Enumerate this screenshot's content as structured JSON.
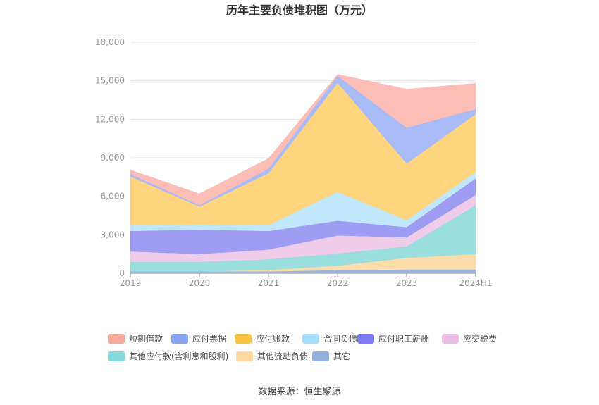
{
  "chart_data": {
    "type": "area",
    "stacked": true,
    "title": "历年主要负债堆积图（万元）",
    "categories": [
      "2019",
      "2020",
      "2021",
      "2022",
      "2023",
      "2024H1"
    ],
    "y_ticks": [
      "0",
      "3,000",
      "6,000",
      "9,000",
      "12,000",
      "15,000",
      "18,000"
    ],
    "ylim": [
      0,
      18000
    ],
    "grid": true,
    "legend_position": "bottom",
    "series": [
      {
        "name": "其它",
        "color": "#9ab6df",
        "values": [
          150,
          150,
          150,
          250,
          300,
          300
        ]
      },
      {
        "name": "其他流动负债",
        "color": "#fbdcaa",
        "values": [
          0,
          0,
          100,
          350,
          900,
          1200
        ]
      },
      {
        "name": "其他应付款(含利息和股利)",
        "color": "#9adede",
        "values": [
          750,
          750,
          850,
          950,
          900,
          3800
        ]
      },
      {
        "name": "应交税费",
        "color": "#eeccea",
        "values": [
          800,
          600,
          750,
          1400,
          700,
          800
        ]
      },
      {
        "name": "应付职工薪酬",
        "color": "#9e9cf3",
        "values": [
          1600,
          1900,
          1450,
          1150,
          800,
          1300
        ]
      },
      {
        "name": "合同负债",
        "color": "#bfe6fa",
        "values": [
          450,
          400,
          450,
          2250,
          550,
          500
        ]
      },
      {
        "name": "应付账款",
        "color": "#fed57e",
        "values": [
          3800,
          1400,
          4050,
          8500,
          4400,
          4500
        ]
      },
      {
        "name": "应付票据",
        "color": "#aabcf8",
        "values": [
          200,
          100,
          350,
          550,
          2800,
          400
        ]
      },
      {
        "name": "短期借款",
        "color": "#fbbdb6",
        "values": [
          300,
          900,
          800,
          100,
          3000,
          2000
        ]
      }
    ],
    "legend_order": [
      "短期借款",
      "应付票据",
      "应付账款",
      "合同负债",
      "应付职工薪酬",
      "应交税费",
      "其他应付款(含利息和股利)",
      "其他流动负债",
      "其它"
    ],
    "legend_colors": {
      "短期借款": "#f6a99d",
      "应付票据": "#8aa6f3",
      "应付账款": "#fbc346",
      "合同负债": "#a7dffa",
      "应付职工薪酬": "#7c7bf0",
      "应交税费": "#e9bce3",
      "其他应付款(含利息和股利)": "#84d9d9",
      "其他流动负债": "#fcd8a0",
      "其它": "#93b0da"
    },
    "source": "数据来源：恒生聚源"
  }
}
